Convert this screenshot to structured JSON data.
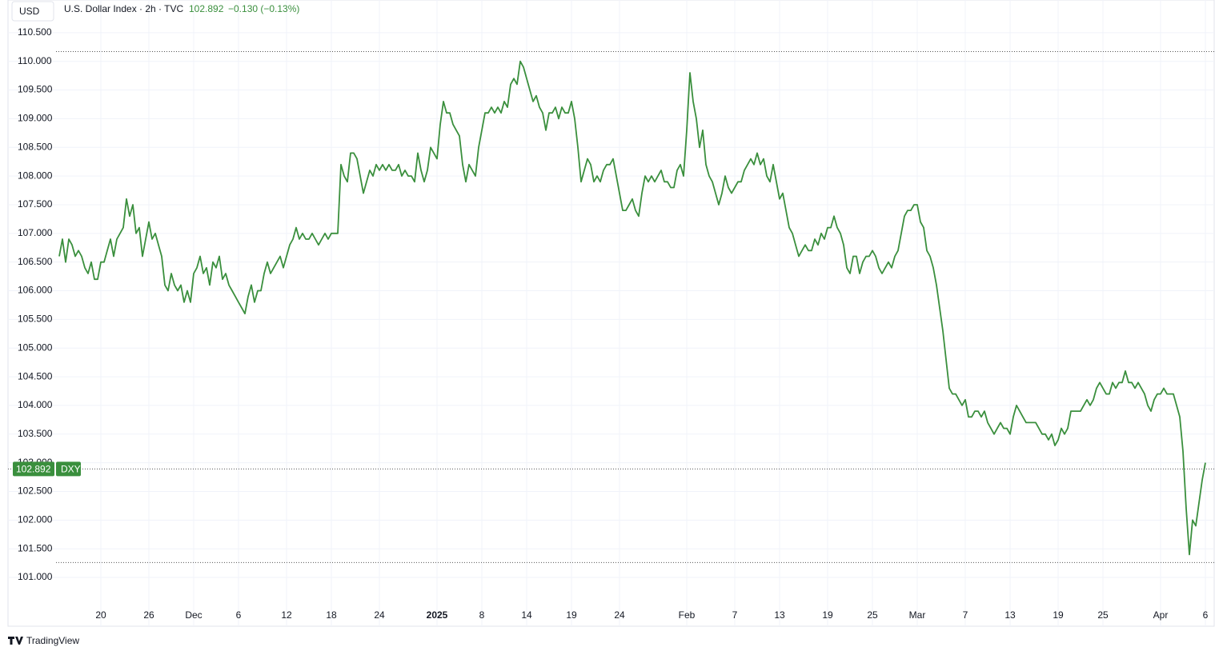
{
  "chart_data": {
    "type": "line",
    "currency": "USD",
    "title": "U.S. Dollar Index · 2h · TVC",
    "change": "−0.130 (−0.13%)",
    "symbol": "DXY",
    "brand": "TradingView",
    "last_price": 102.892,
    "range_lines": [
      110.17,
      101.26
    ],
    "color": "#3a8f3d",
    "grid": true,
    "ylim": [
      100.15,
      111.0
    ],
    "yticks": [
      {
        "value": 101,
        "label": "101.000"
      },
      {
        "value": 101.5,
        "label": "101.500"
      },
      {
        "value": 102,
        "label": "102.000"
      },
      {
        "value": 102.5,
        "label": "102.500"
      },
      {
        "value": 103,
        "label": "103.000"
      },
      {
        "value": 103.5,
        "label": "103.500"
      },
      {
        "value": 104,
        "label": "104.000"
      },
      {
        "value": 104.5,
        "label": "104.500"
      },
      {
        "value": 105,
        "label": "105.000"
      },
      {
        "value": 105.5,
        "label": "105.500"
      },
      {
        "value": 106,
        "label": "106.000"
      },
      {
        "value": 106.5,
        "label": "106.500"
      },
      {
        "value": 107,
        "label": "107.000"
      },
      {
        "value": 107.5,
        "label": "107.500"
      },
      {
        "value": 108,
        "label": "108.000"
      },
      {
        "value": 108.5,
        "label": "108.500"
      },
      {
        "value": 109,
        "label": "109.000"
      },
      {
        "value": 109.5,
        "label": "109.500"
      },
      {
        "value": 110,
        "label": "110.000"
      },
      {
        "value": 110.5,
        "label": "110.500"
      }
    ],
    "categories": [
      null,
      null,
      null,
      null,
      null,
      null,
      null,
      null,
      null,
      null,
      null,
      null,
      null,
      "20",
      null,
      null,
      null,
      null,
      null,
      null,
      null,
      null,
      null,
      null,
      null,
      null,
      null,
      null,
      "26",
      null,
      null,
      null,
      null,
      null,
      null,
      null,
      null,
      null,
      null,
      null,
      null,
      null,
      "Dec",
      null,
      null,
      null,
      null,
      null,
      null,
      null,
      null,
      null,
      null,
      null,
      null,
      null,
      "6",
      null,
      null,
      null,
      null,
      null,
      null,
      null,
      null,
      null,
      null,
      null,
      null,
      null,
      null,
      "12",
      null,
      null,
      null,
      null,
      null,
      null,
      null,
      null,
      null,
      null,
      null,
      null,
      null,
      "18",
      null,
      null,
      null,
      null,
      null,
      null,
      null,
      null,
      null,
      null,
      null,
      null,
      null,
      null,
      "24",
      null,
      null,
      null,
      null,
      null,
      null,
      null,
      null,
      null,
      null,
      null,
      null,
      null,
      null,
      null,
      null,
      null,
      "2025",
      null,
      null,
      null,
      null,
      null,
      null,
      null,
      null,
      null,
      null,
      null,
      null,
      null,
      "8",
      null,
      null,
      null,
      null,
      null,
      null,
      null,
      null,
      null,
      null,
      null,
      null,
      null,
      "14",
      null,
      null,
      null,
      null,
      null,
      null,
      null,
      null,
      null,
      null,
      null,
      null,
      null,
      "19",
      null,
      null,
      null,
      null,
      null,
      null,
      null,
      null,
      null,
      null,
      null,
      null,
      null,
      null,
      "24",
      null,
      null,
      null,
      null,
      null,
      null,
      null,
      null,
      null,
      null,
      null,
      null,
      null,
      null,
      null,
      null,
      null,
      null,
      null,
      null,
      "Feb",
      null,
      null,
      null,
      null,
      null,
      null,
      null,
      null,
      null,
      null,
      null,
      null,
      null,
      null,
      "7",
      null,
      null,
      null,
      null,
      null,
      null,
      null,
      null,
      null,
      null,
      null,
      null,
      null,
      "13",
      null,
      null,
      null,
      null,
      null,
      null,
      null,
      null,
      null,
      null,
      null,
      null,
      null,
      null,
      "19",
      null,
      null,
      null,
      null,
      null,
      null,
      null,
      null,
      null,
      null,
      null,
      null,
      null,
      "25",
      null,
      null,
      null,
      null,
      null,
      null,
      null,
      null,
      null,
      null,
      null,
      null,
      null,
      "Mar",
      null,
      null,
      null,
      null,
      null,
      null,
      null,
      null,
      null,
      null,
      null,
      null,
      null,
      null,
      "7",
      null,
      null,
      null,
      null,
      null,
      null,
      null,
      null,
      null,
      null,
      null,
      null,
      null,
      "13",
      null,
      null,
      null,
      null,
      null,
      null,
      null,
      null,
      null,
      null,
      null,
      null,
      null,
      null,
      "19",
      null,
      null,
      null,
      null,
      null,
      null,
      null,
      null,
      null,
      null,
      null,
      null,
      null,
      "25",
      null,
      null,
      null,
      null,
      null,
      null,
      null,
      null,
      null,
      null,
      null,
      null,
      null,
      null,
      null,
      null,
      null,
      "Apr",
      null,
      null,
      null,
      null,
      null,
      null,
      null,
      null,
      null,
      null,
      null,
      null,
      null,
      "6"
    ],
    "values": [
      106.6,
      106.9,
      106.5,
      106.9,
      106.8,
      106.6,
      106.7,
      106.6,
      106.4,
      106.3,
      106.5,
      106.2,
      106.2,
      106.5,
      106.5,
      106.7,
      106.9,
      106.6,
      106.9,
      107.0,
      107.1,
      107.6,
      107.3,
      107.5,
      107.0,
      107.1,
      106.6,
      106.9,
      107.2,
      106.9,
      107.0,
      106.8,
      106.6,
      106.1,
      106.0,
      106.3,
      106.1,
      106.0,
      106.1,
      105.8,
      106.0,
      105.8,
      106.3,
      106.4,
      106.6,
      106.3,
      106.4,
      106.1,
      106.5,
      106.4,
      106.6,
      106.2,
      106.3,
      106.1,
      106.0,
      105.9,
      105.8,
      105.7,
      105.6,
      105.9,
      106.1,
      105.8,
      106.0,
      106.0,
      106.3,
      106.5,
      106.3,
      106.4,
      106.5,
      106.6,
      106.4,
      106.6,
      106.8,
      106.9,
      107.1,
      106.9,
      107.0,
      106.9,
      106.9,
      107.0,
      106.9,
      106.8,
      106.9,
      107.0,
      106.9,
      107.0,
      107.0,
      107.0,
      108.2,
      108.0,
      107.9,
      108.4,
      108.4,
      108.3,
      108.0,
      107.7,
      107.9,
      108.1,
      108.0,
      108.2,
      108.1,
      108.2,
      108.1,
      108.2,
      108.1,
      108.1,
      108.2,
      108.0,
      108.1,
      108.0,
      108.0,
      107.9,
      108.4,
      108.1,
      107.9,
      108.1,
      108.5,
      108.4,
      108.3,
      108.9,
      109.3,
      109.1,
      109.1,
      108.9,
      108.8,
      108.7,
      108.2,
      107.9,
      108.2,
      108.1,
      108.0,
      108.5,
      108.8,
      109.1,
      109.1,
      109.2,
      109.1,
      109.2,
      109.1,
      109.3,
      109.2,
      109.6,
      109.7,
      109.6,
      110.0,
      109.9,
      109.7,
      109.5,
      109.3,
      109.4,
      109.2,
      109.1,
      108.8,
      109.1,
      109.1,
      109.2,
      109.0,
      109.2,
      109.1,
      109.1,
      109.3,
      109.0,
      108.5,
      107.9,
      108.1,
      108.3,
      108.2,
      107.9,
      108.0,
      107.9,
      108.1,
      108.2,
      108.2,
      108.3,
      108.0,
      107.7,
      107.4,
      107.4,
      107.5,
      107.6,
      107.4,
      107.3,
      107.7,
      108.0,
      107.9,
      108.0,
      107.9,
      108.0,
      108.1,
      107.9,
      107.9,
      107.8,
      107.8,
      108.1,
      108.2,
      108.0,
      108.8,
      109.8,
      109.3,
      109.0,
      108.5,
      108.8,
      108.2,
      108.0,
      107.9,
      107.7,
      107.5,
      107.7,
      108.0,
      107.8,
      107.7,
      107.8,
      107.9,
      107.9,
      108.1,
      108.2,
      108.3,
      108.2,
      108.4,
      108.2,
      108.3,
      108.0,
      107.9,
      108.2,
      107.9,
      107.6,
      107.7,
      107.4,
      107.1,
      107.0,
      106.8,
      106.6,
      106.7,
      106.8,
      106.7,
      106.7,
      106.9,
      106.8,
      107.0,
      106.9,
      107.1,
      107.1,
      107.3,
      107.1,
      107.0,
      106.8,
      106.4,
      106.3,
      106.6,
      106.6,
      106.3,
      106.5,
      106.6,
      106.6,
      106.7,
      106.6,
      106.4,
      106.3,
      106.4,
      106.5,
      106.4,
      106.6,
      106.7,
      107.0,
      107.3,
      107.4,
      107.4,
      107.5,
      107.5,
      107.2,
      107.1,
      106.7,
      106.6,
      106.4,
      106.1,
      105.7,
      105.3,
      104.8,
      104.3,
      104.2,
      104.2,
      104.1,
      104.0,
      104.1,
      103.8,
      103.8,
      103.9,
      103.9,
      103.8,
      103.9,
      103.7,
      103.6,
      103.5,
      103.6,
      103.7,
      103.6,
      103.6,
      103.5,
      103.8,
      104.0,
      103.9,
      103.8,
      103.7,
      103.7,
      103.7,
      103.7,
      103.6,
      103.5,
      103.5,
      103.4,
      103.5,
      103.3,
      103.4,
      103.6,
      103.5,
      103.6,
      103.9,
      103.9,
      103.9,
      103.9,
      104.0,
      104.1,
      104.0,
      104.1,
      104.3,
      104.4,
      104.3,
      104.2,
      104.2,
      104.4,
      104.3,
      104.4,
      104.4,
      104.6,
      104.4,
      104.4,
      104.3,
      104.4,
      104.3,
      104.2,
      104.0,
      103.9,
      104.1,
      104.2,
      104.2,
      104.3,
      104.2,
      104.2,
      104.2,
      104.0,
      103.8,
      103.2,
      102.2,
      101.4,
      102.0,
      101.9,
      102.3,
      102.7,
      103.0
    ]
  }
}
